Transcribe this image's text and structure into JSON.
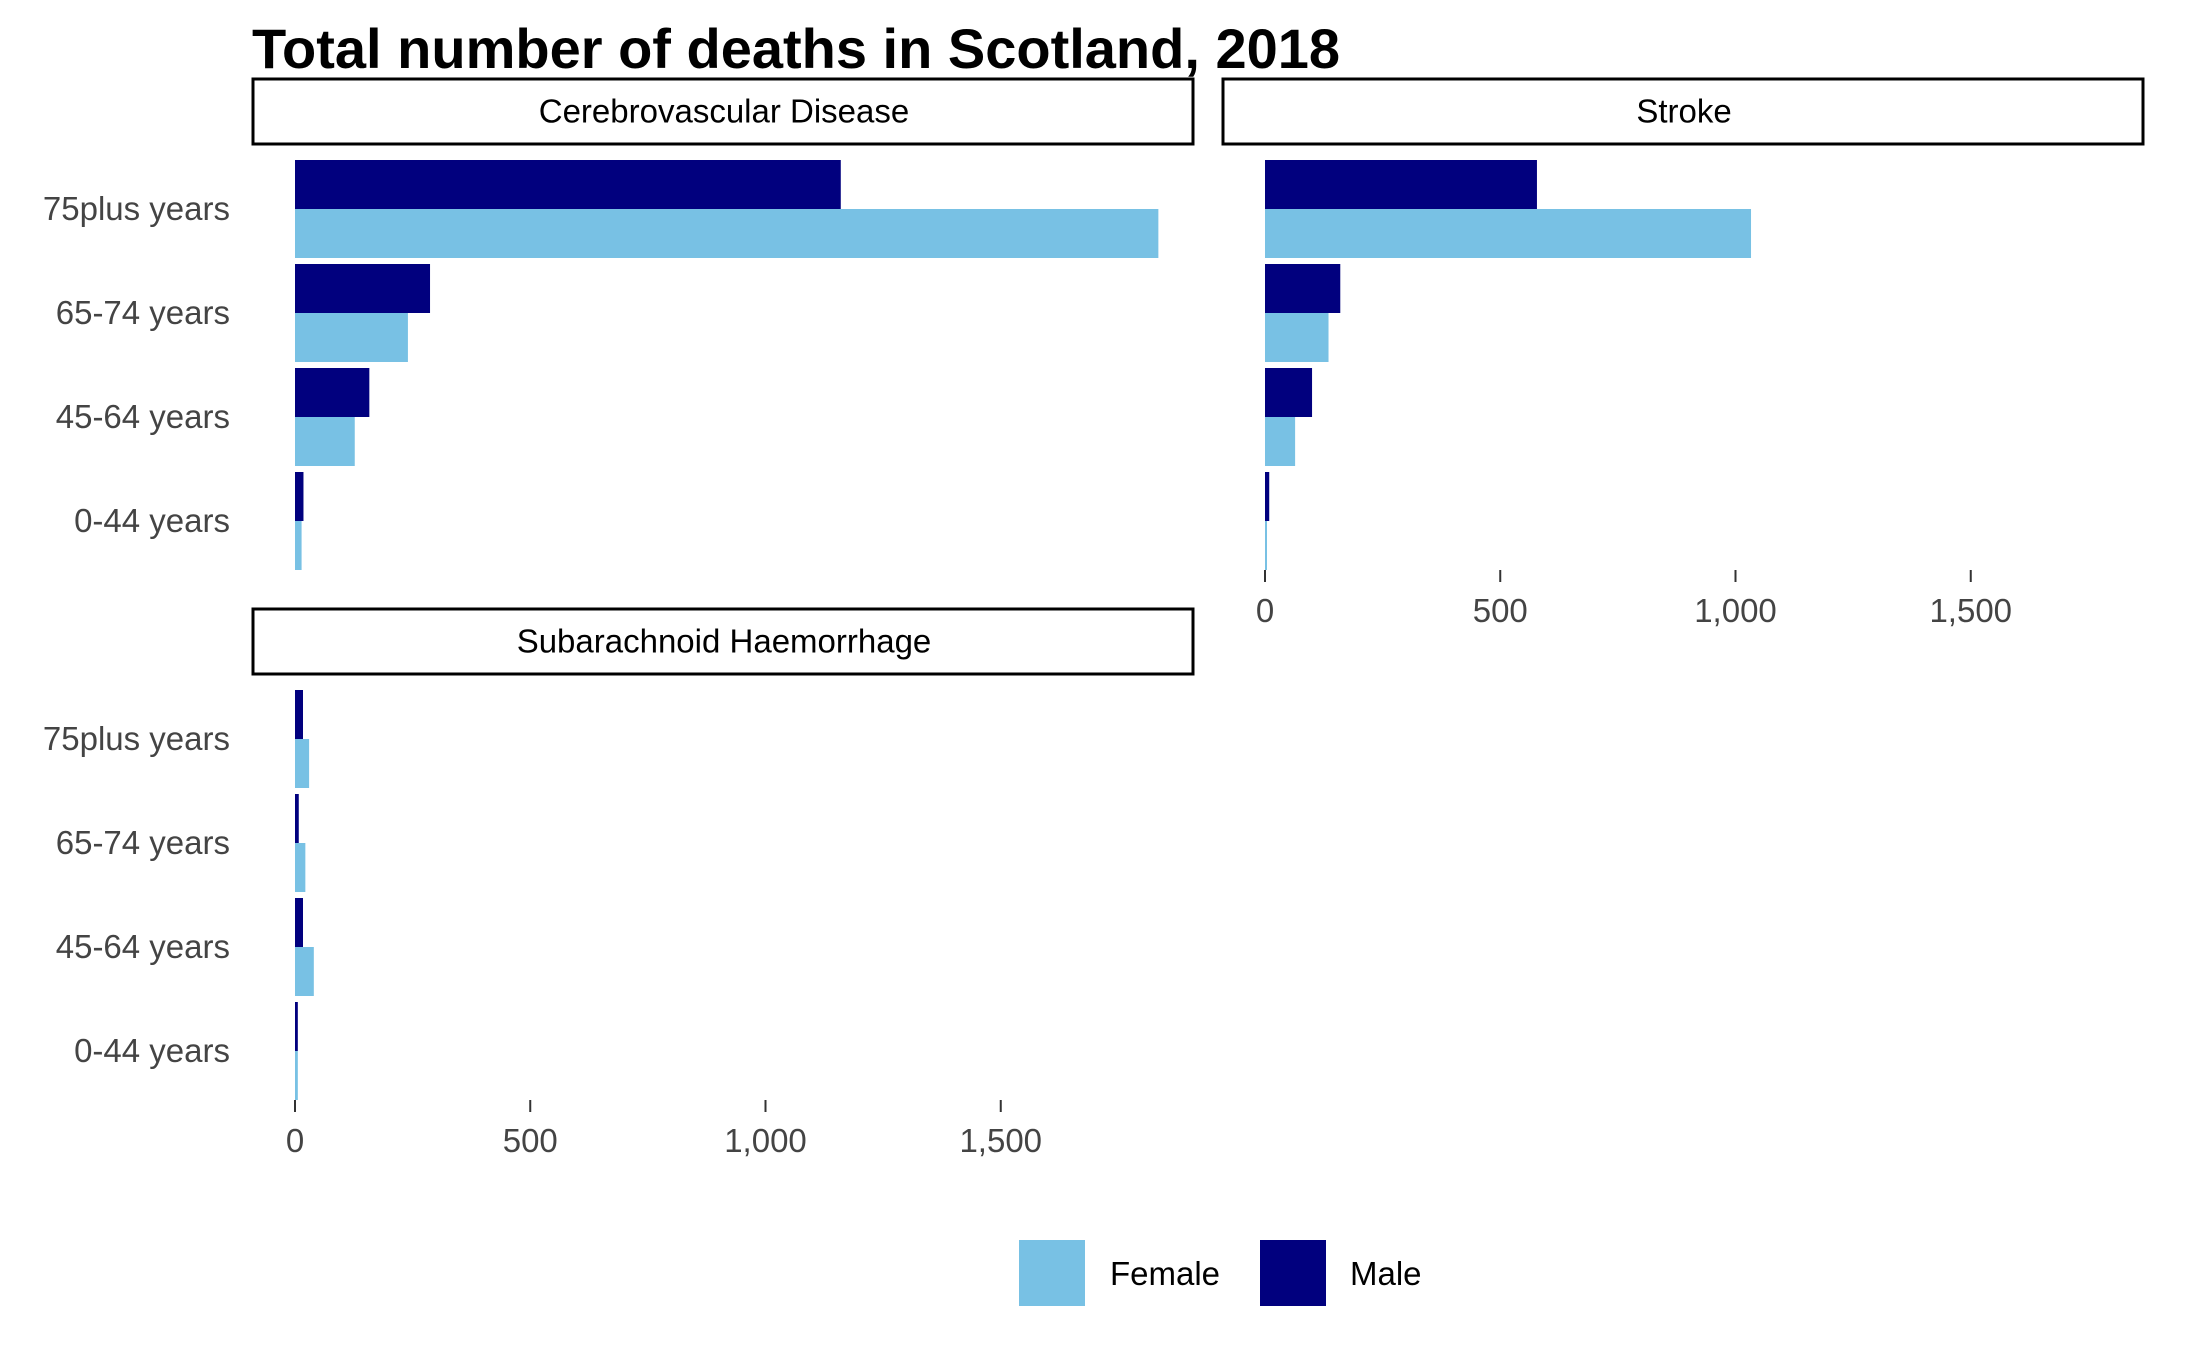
{
  "colors": {
    "Female": "#78C1E4",
    "Male": "#01007E",
    "strip_border": "#000000",
    "tick_text": "#444444"
  },
  "chart_data": {
    "type": "bar",
    "orientation": "horizontal",
    "title": "Total number of deaths in Scotland, 2018",
    "categories": [
      "75plus years",
      "65-74 years",
      "45-64 years",
      "0-44 years"
    ],
    "xticks": [
      0,
      500,
      1000,
      1500
    ],
    "xtick_labels": [
      "0",
      "500",
      "1,000",
      "1,500"
    ],
    "xlim": [
      0,
      1850
    ],
    "legend": {
      "position": "bottom",
      "entries": [
        "Female",
        "Male"
      ]
    },
    "grid": false,
    "panels": [
      {
        "title": "Cerebrovascular Disease",
        "series": [
          {
            "name": "Male",
            "values": [
              1160,
              287,
              158,
              18
            ]
          },
          {
            "name": "Female",
            "values": [
              1835,
              240,
              127,
              14
            ]
          }
        ]
      },
      {
        "title": "Stroke",
        "series": [
          {
            "name": "Male",
            "values": [
              578,
              160,
              100,
              9
            ]
          },
          {
            "name": "Female",
            "values": [
              1033,
              135,
              64,
              4
            ]
          }
        ]
      },
      {
        "title": "Subarachnoid Haemorrhage",
        "series": [
          {
            "name": "Male",
            "values": [
              17,
              8,
              17,
              6
            ]
          },
          {
            "name": "Female",
            "values": [
              30,
              22,
              40,
              6
            ]
          }
        ]
      }
    ]
  }
}
